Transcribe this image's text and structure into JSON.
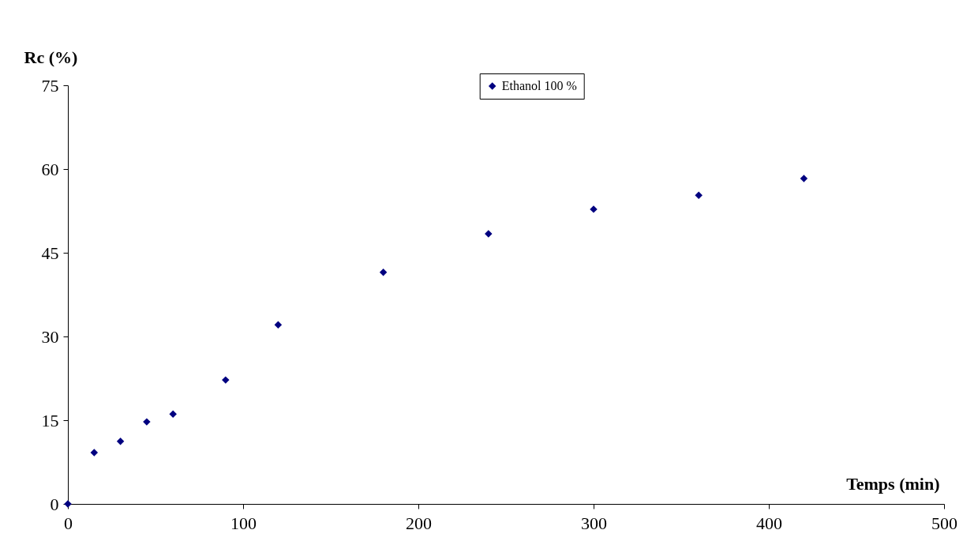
{
  "chart_data": {
    "type": "scatter",
    "xlabel": "Temps (min)",
    "ylabel": "Rc (%)",
    "x": [
      0,
      15,
      30,
      45,
      60,
      90,
      120,
      180,
      240,
      300,
      360,
      420
    ],
    "series": [
      {
        "name": "Ethanol 100 %",
        "color": "#000080",
        "values": [
          0,
          9.2,
          11.2,
          14.7,
          16.1,
          22.2,
          32.1,
          41.5,
          48.4,
          52.8,
          55.3,
          58.3
        ]
      }
    ],
    "xlim": [
      0,
      500
    ],
    "xticks": [
      0,
      100,
      200,
      300,
      400,
      500
    ],
    "ylim": [
      0,
      75
    ],
    "yticks": [
      0,
      15,
      30,
      45,
      60,
      75
    ],
    "marker": "diamond",
    "grid": false,
    "legend": "top"
  }
}
